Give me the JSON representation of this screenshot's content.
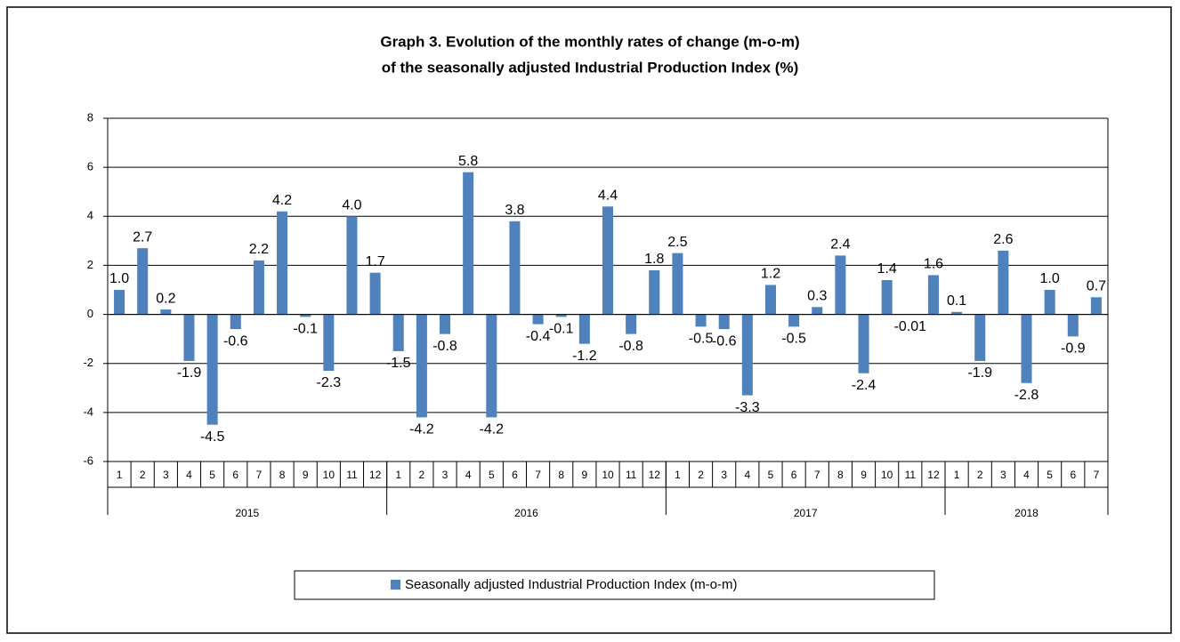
{
  "chart_data": {
    "type": "bar",
    "title": [
      "Graph 3. Evolution of the monthly rates of change (m-o-m)",
      "of the seasonally  adjusted Industrial Production Index (%)"
    ],
    "groups": [
      {
        "name": "2015",
        "categories": [
          "1",
          "2",
          "3",
          "4",
          "5",
          "6",
          "7",
          "8",
          "9",
          "10",
          "11",
          "12"
        ]
      },
      {
        "name": "2016",
        "categories": [
          "1",
          "2",
          "3",
          "4",
          "5",
          "6",
          "7",
          "8",
          "9",
          "10",
          "11",
          "12"
        ]
      },
      {
        "name": "2017",
        "categories": [
          "1",
          "2",
          "3",
          "4",
          "5",
          "6",
          "7",
          "8",
          "9",
          "10",
          "11",
          "12"
        ]
      },
      {
        "name": "2018",
        "categories": [
          "1",
          "2",
          "3",
          "4",
          "5",
          "6",
          "7"
        ]
      }
    ],
    "series": [
      {
        "name": "Seasonally adjusted Industrial Production Index (m-o-m)",
        "color": "#4f81bd",
        "values": [
          1.0,
          2.7,
          0.2,
          -1.9,
          -4.5,
          -0.6,
          2.2,
          4.2,
          -0.1,
          -2.3,
          4.0,
          1.7,
          -1.5,
          -4.2,
          -0.8,
          5.8,
          -4.2,
          3.8,
          -0.4,
          -0.1,
          -1.2,
          4.4,
          -0.8,
          1.8,
          2.5,
          -0.5,
          -0.6,
          -3.3,
          1.2,
          -0.5,
          0.3,
          2.4,
          -2.4,
          1.4,
          -0.01,
          1.6,
          0.1,
          -1.9,
          2.6,
          -2.8,
          1.0,
          -0.9,
          0.7
        ],
        "value_labels": [
          "1.0",
          "2.7",
          "0.2",
          "-1.9",
          "-4.5",
          "-0.6",
          "2.2",
          "4.2",
          "-0.1",
          "-2.3",
          "4.0",
          "1.7",
          "-1.5",
          "-4.2",
          "-0.8",
          "5.8",
          "-4.2",
          "3.8",
          "-0.4",
          "-0.1",
          "-1.2",
          "4.4",
          "-0.8",
          "1.8",
          "2.5",
          "-0.5",
          "-0.6",
          "-3.3",
          "1.2",
          "-0.5",
          "0.3",
          "2.4",
          "-2.4",
          "1.4",
          "-0.01",
          "1.6",
          "0.1",
          "-1.9",
          "2.6",
          "-2.8",
          "1.0",
          "-0.9",
          "0.7"
        ]
      }
    ],
    "ylim": [
      -6,
      8
    ],
    "yticks": [
      -6,
      -4,
      -2,
      0,
      2,
      4,
      6,
      8
    ],
    "grid": true,
    "legend": "bottom"
  }
}
